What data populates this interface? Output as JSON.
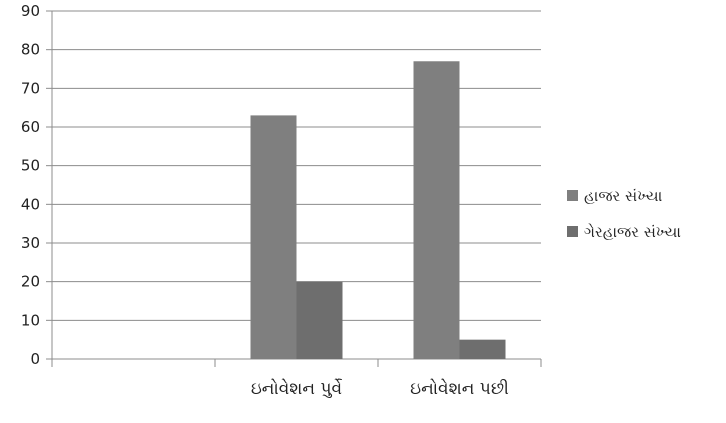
{
  "chart_data": {
    "type": "bar",
    "categories": [
      "",
      "ઇનોવેશન પુર્વે",
      "ઇનોવેશન પછી"
    ],
    "series": [
      {
        "name": "હાજર સંખ્યા",
        "values": [
          0,
          63,
          77
        ],
        "color": "#7f7f7f"
      },
      {
        "name": "ગેરહાજર સંખ્યા",
        "values": [
          0,
          20,
          5
        ],
        "color": "#6e6e6e"
      }
    ],
    "ylim": [
      0,
      90
    ],
    "yticks": [
      0,
      10,
      20,
      30,
      40,
      50,
      60,
      70,
      80,
      90
    ],
    "grid": true,
    "legend": "right",
    "title": "",
    "xlabel": "",
    "ylabel": ""
  }
}
